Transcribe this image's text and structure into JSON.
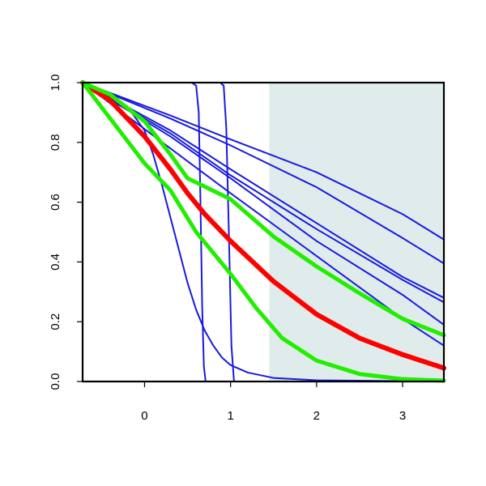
{
  "chart_data": {
    "type": "line",
    "title": "",
    "xlabel": "",
    "ylabel": "",
    "xlim": [
      -0.72,
      3.48
    ],
    "ylim": [
      0.0,
      1.0
    ],
    "x_ticks": [
      0,
      1,
      2,
      3
    ],
    "x_tick_labels": [
      "0",
      "1",
      "2",
      "3"
    ],
    "y_ticks": [
      0.0,
      0.2,
      0.4,
      0.6,
      0.8,
      1.0
    ],
    "y_tick_labels": [
      "0.0",
      "0.2",
      "0.4",
      "0.6",
      "0.8",
      "1.0"
    ],
    "grid": false,
    "legend": "none",
    "shaded_region": {
      "x_from": 1.45,
      "x_to": 3.48,
      "color": "#dfeceb"
    },
    "colors": {
      "thin": "#1a1adf",
      "red": "#ff0000",
      "green": "#22ee00"
    },
    "series": [
      {
        "role": "thin",
        "points": [
          [
            -0.72,
            1.0
          ],
          [
            0.3,
            0.78
          ],
          [
            1.0,
            0.63
          ],
          [
            2.0,
            0.42
          ],
          [
            3.0,
            0.21
          ],
          [
            3.48,
            0.12
          ]
        ]
      },
      {
        "role": "thin",
        "points": [
          [
            -0.72,
            1.0
          ],
          [
            0.3,
            0.82
          ],
          [
            1.0,
            0.68
          ],
          [
            2.0,
            0.47
          ],
          [
            3.0,
            0.29
          ],
          [
            3.48,
            0.19
          ]
        ]
      },
      {
        "role": "thin",
        "points": [
          [
            -0.72,
            1.0
          ],
          [
            0.3,
            0.83
          ],
          [
            1.0,
            0.69
          ],
          [
            2.0,
            0.51
          ],
          [
            3.0,
            0.34
          ],
          [
            3.48,
            0.265
          ]
        ]
      },
      {
        "role": "thin",
        "points": [
          [
            -0.72,
            1.0
          ],
          [
            0.3,
            0.84
          ],
          [
            1.0,
            0.71
          ],
          [
            2.0,
            0.53
          ],
          [
            3.0,
            0.35
          ],
          [
            3.48,
            0.28
          ]
        ]
      },
      {
        "role": "thin",
        "points": [
          [
            -0.72,
            1.0
          ],
          [
            0.3,
            0.88
          ],
          [
            1.0,
            0.79
          ],
          [
            2.0,
            0.65
          ],
          [
            3.0,
            0.48
          ],
          [
            3.48,
            0.395
          ]
        ]
      },
      {
        "role": "thin",
        "points": [
          [
            -0.72,
            1.0
          ],
          [
            0.3,
            0.89
          ],
          [
            1.0,
            0.81
          ],
          [
            2.0,
            0.7
          ],
          [
            3.0,
            0.56
          ],
          [
            3.48,
            0.475
          ]
        ]
      },
      {
        "role": "thin",
        "points": [
          [
            -0.72,
            1.0
          ],
          [
            -0.4,
            0.96
          ],
          [
            -0.2,
            0.92
          ],
          [
            0.0,
            0.84
          ],
          [
            0.1,
            0.76
          ],
          [
            0.2,
            0.66
          ],
          [
            0.3,
            0.55
          ],
          [
            0.4,
            0.44
          ],
          [
            0.5,
            0.33
          ],
          [
            0.6,
            0.24
          ],
          [
            0.7,
            0.17
          ],
          [
            0.8,
            0.12
          ],
          [
            0.9,
            0.08
          ],
          [
            1.0,
            0.055
          ],
          [
            1.2,
            0.03
          ],
          [
            1.5,
            0.012
          ],
          [
            2.0,
            0.004
          ],
          [
            3.48,
            0.0
          ]
        ]
      },
      {
        "role": "thin",
        "points": [
          [
            -0.72,
            1.0
          ],
          [
            0.55,
            1.0
          ],
          [
            0.6,
            0.99
          ],
          [
            0.63,
            0.9
          ],
          [
            0.65,
            0.6
          ],
          [
            0.67,
            0.25
          ],
          [
            0.69,
            0.05
          ],
          [
            0.71,
            0.0
          ]
        ]
      },
      {
        "role": "thin",
        "points": [
          [
            -0.72,
            1.0
          ],
          [
            0.88,
            1.0
          ],
          [
            0.92,
            0.99
          ],
          [
            0.95,
            0.85
          ],
          [
            0.98,
            0.5
          ],
          [
            1.01,
            0.12
          ],
          [
            1.04,
            0.0
          ]
        ]
      },
      {
        "role": "red",
        "points": [
          [
            -0.72,
            1.0
          ],
          [
            -0.4,
            0.94
          ],
          [
            0.0,
            0.82
          ],
          [
            0.3,
            0.71
          ],
          [
            0.5,
            0.63
          ],
          [
            0.7,
            0.56
          ],
          [
            1.0,
            0.47
          ],
          [
            1.5,
            0.335
          ],
          [
            2.0,
            0.225
          ],
          [
            2.5,
            0.145
          ],
          [
            3.0,
            0.09
          ],
          [
            3.48,
            0.045
          ]
        ]
      },
      {
        "role": "green",
        "points": [
          [
            -0.72,
            1.0
          ],
          [
            -0.4,
            0.96
          ],
          [
            0.0,
            0.87
          ],
          [
            0.3,
            0.76
          ],
          [
            0.5,
            0.68
          ],
          [
            1.0,
            0.61
          ],
          [
            1.5,
            0.485
          ],
          [
            2.0,
            0.385
          ],
          [
            2.5,
            0.295
          ],
          [
            3.0,
            0.21
          ],
          [
            3.48,
            0.155
          ]
        ]
      },
      {
        "role": "green",
        "points": [
          [
            -0.72,
            1.0
          ],
          [
            -0.4,
            0.88
          ],
          [
            0.0,
            0.73
          ],
          [
            0.3,
            0.64
          ],
          [
            0.6,
            0.5
          ],
          [
            0.8,
            0.43
          ],
          [
            1.0,
            0.36
          ],
          [
            1.3,
            0.245
          ],
          [
            1.6,
            0.145
          ],
          [
            2.0,
            0.07
          ],
          [
            2.5,
            0.025
          ],
          [
            3.0,
            0.008
          ],
          [
            3.48,
            0.003
          ]
        ]
      }
    ]
  }
}
